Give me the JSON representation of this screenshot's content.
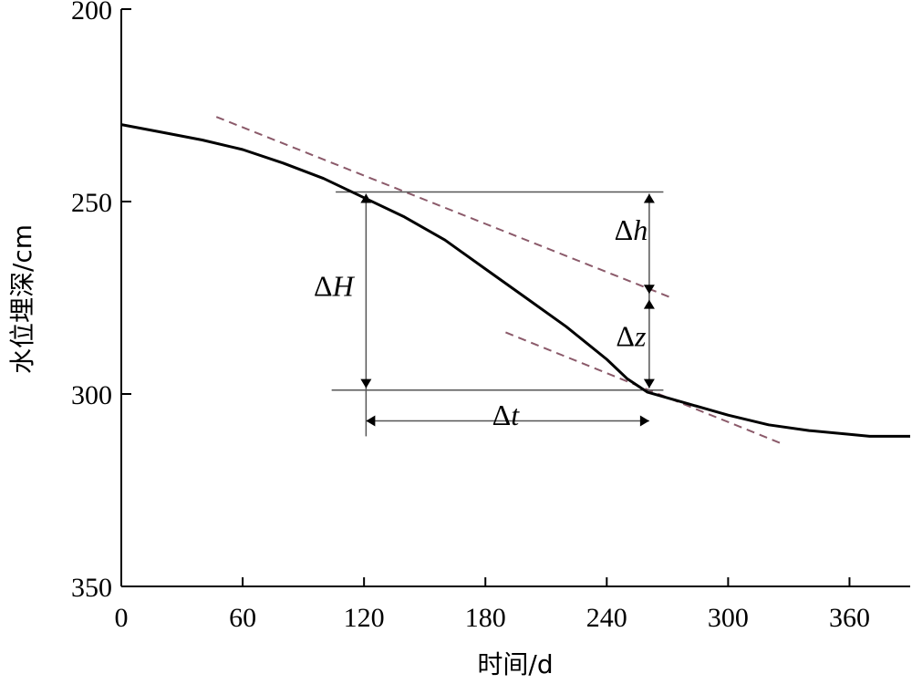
{
  "chart_data": {
    "type": "line",
    "xlabel": "时间/d",
    "ylabel": "水位埋深/cm",
    "xlim": [
      0,
      390
    ],
    "ylim": [
      200,
      350
    ],
    "y_inverted": true,
    "xticks": [
      "0",
      "60",
      "120",
      "180",
      "240",
      "300",
      "360"
    ],
    "yticks": [
      "200",
      "250",
      "300",
      "350"
    ],
    "grid": false,
    "series": [
      {
        "x": [
          0,
          20,
          40,
          60,
          80,
          100,
          120,
          140,
          160,
          180,
          200,
          220,
          240,
          250,
          260,
          280,
          300,
          320,
          340,
          360,
          370,
          380,
          390
        ],
        "y": [
          230,
          232,
          234,
          236.5,
          240,
          244,
          249,
          254,
          260,
          267.5,
          275,
          282.5,
          291,
          296,
          299.5,
          302.5,
          305.5,
          308,
          309.5,
          310.5,
          311,
          311,
          311
        ]
      }
    ],
    "tangent_lines": [
      {
        "x": [
          47,
          272
        ],
        "y": [
          228,
          275
        ]
      },
      {
        "x": [
          190,
          327
        ],
        "y": [
          284,
          313
        ]
      }
    ],
    "annotations": [
      {
        "label_main": "Δ",
        "label_var": "H",
        "x": 105,
        "y": 274.5
      },
      {
        "label_main": "Δ",
        "label_var": "h",
        "x": 252,
        "y": 260
      },
      {
        "label_main": "Δ",
        "label_var": "z",
        "x": 252,
        "y": 287.5
      },
      {
        "label_main": "Δ",
        "label_var": "t",
        "x": 190,
        "y": 308
      }
    ]
  },
  "colors": {
    "curve": "#000000",
    "tangent": "#8b5a6a",
    "axis": "#000000",
    "guide": "#555555"
  }
}
